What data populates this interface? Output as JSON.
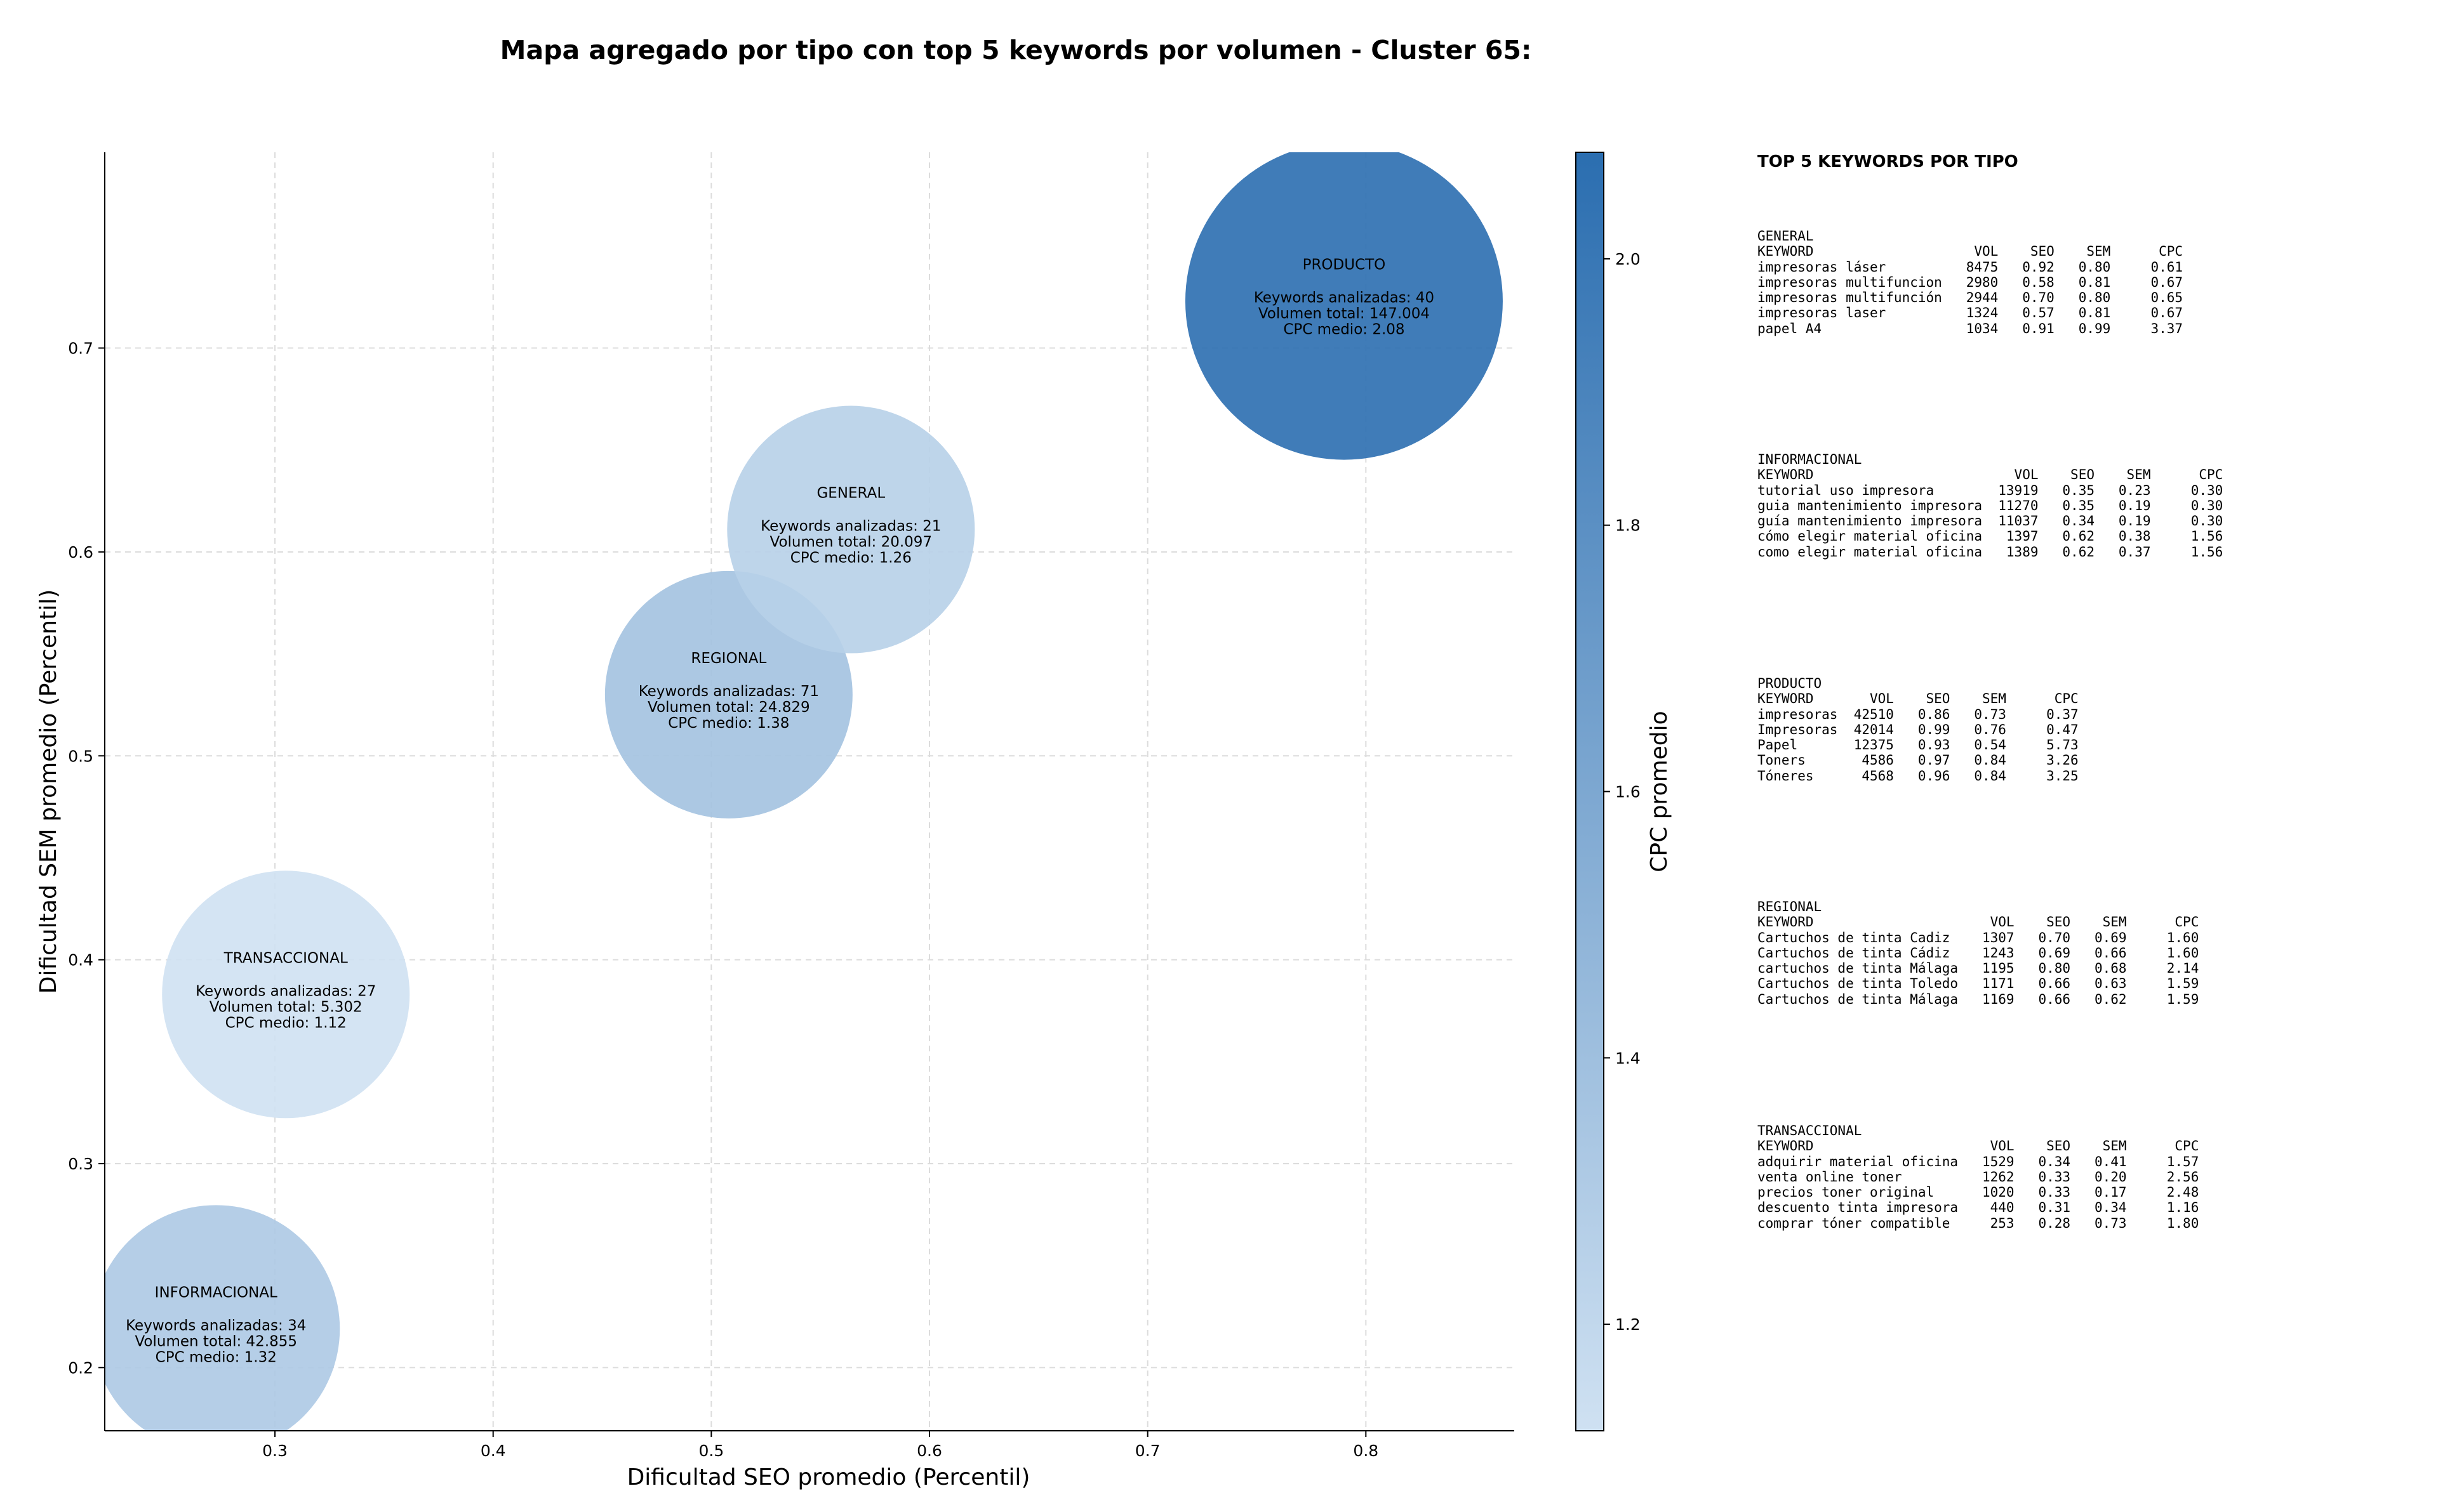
{
  "title": "Mapa agregado por tipo con top 5 keywords por volumen - Cluster 65:",
  "chart_data": {
    "type": "scatter",
    "bubble": true,
    "xlabel": "Dificultad SEO promedio (Percentil)",
    "ylabel": "Dificultad SEM promedio (Percentil)",
    "xlim": [
      0.222,
      0.868
    ],
    "ylim": [
      0.169,
      0.796
    ],
    "xticks": [
      "0.3",
      "0.4",
      "0.5",
      "0.6",
      "0.7",
      "0.8"
    ],
    "yticks": [
      "0.2",
      "0.3",
      "0.4",
      "0.5",
      "0.6",
      "0.7"
    ],
    "xtick_values": [
      0.3,
      0.4,
      0.5,
      0.6,
      0.7,
      0.8
    ],
    "ytick_values": [
      0.2,
      0.3,
      0.4,
      0.5,
      0.6,
      0.7
    ],
    "grid": true,
    "colorbar": {
      "label": "CPC promedio",
      "range": [
        1.12,
        2.08
      ],
      "ticks": [
        "1.2",
        "1.4",
        "1.6",
        "1.8",
        "2.0"
      ],
      "tick_values": [
        1.2,
        1.4,
        1.6,
        1.8,
        2.0
      ],
      "color_low": "#cfe1f2",
      "color_high": "#2b6eb0"
    },
    "kw_label": "Keywords analizadas: ",
    "vol_label": "Volumen total: ",
    "cpc_label": "CPC medio: ",
    "points": [
      {
        "name": "INFORMACIONAL",
        "x": 0.273,
        "y": 0.219,
        "keywords": "34",
        "volume": "42.855",
        "volume_value": 42855,
        "cpc": "1.32",
        "cpc_value": 1.32
      },
      {
        "name": "TRANSACCIONAL",
        "x": 0.305,
        "y": 0.383,
        "keywords": "27",
        "volume": "5.302",
        "volume_value": 5302,
        "cpc": "1.12",
        "cpc_value": 1.12
      },
      {
        "name": "REGIONAL",
        "x": 0.508,
        "y": 0.53,
        "keywords": "71",
        "volume": "24.829",
        "volume_value": 24829,
        "cpc": "1.38",
        "cpc_value": 1.38
      },
      {
        "name": "GENERAL",
        "x": 0.564,
        "y": 0.611,
        "keywords": "21",
        "volume": "20.097",
        "volume_value": 20097,
        "cpc": "1.26",
        "cpc_value": 1.26
      },
      {
        "name": "PRODUCTO",
        "x": 0.79,
        "y": 0.723,
        "keywords": "40",
        "volume": "147.004",
        "volume_value": 147004,
        "cpc": "2.08",
        "cpc_value": 2.08
      }
    ]
  },
  "side_panel": {
    "heading": "TOP 5 KEYWORDS POR TIPO",
    "columns": [
      "KEYWORD",
      "VOL",
      "SEO",
      "SEM",
      "CPC"
    ],
    "groups": [
      {
        "name": "GENERAL",
        "rows": [
          [
            "impresoras láser",
            "8475",
            "0.92",
            "0.80",
            "0.61"
          ],
          [
            "impresoras multifuncion",
            "2980",
            "0.58",
            "0.81",
            "0.67"
          ],
          [
            "impresoras multifunción",
            "2944",
            "0.70",
            "0.80",
            "0.65"
          ],
          [
            "impresoras laser",
            "1324",
            "0.57",
            "0.81",
            "0.67"
          ],
          [
            "papel A4",
            "1034",
            "0.91",
            "0.99",
            "3.37"
          ]
        ]
      },
      {
        "name": "INFORMACIONAL",
        "rows": [
          [
            "tutorial uso impresora",
            "13919",
            "0.35",
            "0.23",
            "0.30"
          ],
          [
            "guia mantenimiento impresora",
            "11270",
            "0.35",
            "0.19",
            "0.30"
          ],
          [
            "guía mantenimiento impresora",
            "11037",
            "0.34",
            "0.19",
            "0.30"
          ],
          [
            "cómo elegir material oficina",
            "1397",
            "0.62",
            "0.38",
            "1.56"
          ],
          [
            "como elegir material oficina",
            "1389",
            "0.62",
            "0.37",
            "1.56"
          ]
        ]
      },
      {
        "name": "PRODUCTO",
        "rows": [
          [
            "impresoras",
            "42510",
            "0.86",
            "0.73",
            "0.37"
          ],
          [
            "Impresoras",
            "42014",
            "0.99",
            "0.76",
            "0.47"
          ],
          [
            "Papel",
            "12375",
            "0.93",
            "0.54",
            "5.73"
          ],
          [
            "Toners",
            "4586",
            "0.97",
            "0.84",
            "3.26"
          ],
          [
            "Tóneres",
            "4568",
            "0.96",
            "0.84",
            "3.25"
          ]
        ]
      },
      {
        "name": "REGIONAL",
        "rows": [
          [
            "Cartuchos de tinta Cadiz",
            "1307",
            "0.70",
            "0.69",
            "1.60"
          ],
          [
            "Cartuchos de tinta Cádiz",
            "1243",
            "0.69",
            "0.66",
            "1.60"
          ],
          [
            "cartuchos de tinta Málaga",
            "1195",
            "0.80",
            "0.68",
            "2.14"
          ],
          [
            "Cartuchos de tinta Toledo",
            "1171",
            "0.66",
            "0.63",
            "1.59"
          ],
          [
            "Cartuchos de tinta Málaga",
            "1169",
            "0.66",
            "0.62",
            "1.59"
          ]
        ]
      },
      {
        "name": "TRANSACCIONAL",
        "rows": [
          [
            "adquirir material oficina",
            "1529",
            "0.34",
            "0.41",
            "1.57"
          ],
          [
            "venta online toner",
            "1262",
            "0.33",
            "0.20",
            "2.56"
          ],
          [
            "precios toner original",
            "1020",
            "0.33",
            "0.17",
            "2.48"
          ],
          [
            "descuento tinta impresora",
            "440",
            "0.31",
            "0.34",
            "1.16"
          ],
          [
            "comprar tóner compatible",
            "253",
            "0.28",
            "0.73",
            "1.80"
          ]
        ]
      }
    ]
  }
}
